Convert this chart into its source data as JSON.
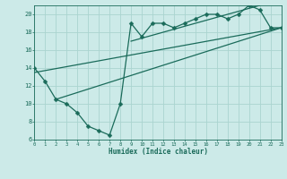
{
  "bg_color": "#cceae8",
  "grid_color": "#aad4d0",
  "line_color": "#1a6b5a",
  "line1_x": [
    0,
    1,
    2,
    3,
    4,
    5,
    6,
    7,
    8,
    9,
    10,
    11,
    12,
    13,
    14,
    15,
    16,
    17,
    18,
    19,
    20,
    21,
    22,
    23
  ],
  "line1_y": [
    14.0,
    12.5,
    10.5,
    10.0,
    9.0,
    7.5,
    7.0,
    6.5,
    10.0,
    19.0,
    17.5,
    19.0,
    19.0,
    18.5,
    19.0,
    19.5,
    20.0,
    20.0,
    19.5,
    20.0,
    21.0,
    20.5,
    18.5,
    18.5
  ],
  "line2_x": [
    2,
    23
  ],
  "line2_y": [
    10.5,
    18.5
  ],
  "line3_x": [
    0,
    23
  ],
  "line3_y": [
    13.5,
    18.5
  ],
  "line4_x": [
    9,
    21
  ],
  "line4_y": [
    17.0,
    21.0
  ],
  "xlabel": "Humidex (Indice chaleur)",
  "xlim": [
    0,
    23
  ],
  "ylim": [
    6,
    21
  ],
  "yticks": [
    6,
    8,
    10,
    12,
    14,
    16,
    18,
    20
  ],
  "xticks": [
    0,
    1,
    2,
    3,
    4,
    5,
    6,
    7,
    8,
    9,
    10,
    11,
    12,
    13,
    14,
    15,
    16,
    17,
    18,
    19,
    20,
    21,
    22,
    23
  ]
}
